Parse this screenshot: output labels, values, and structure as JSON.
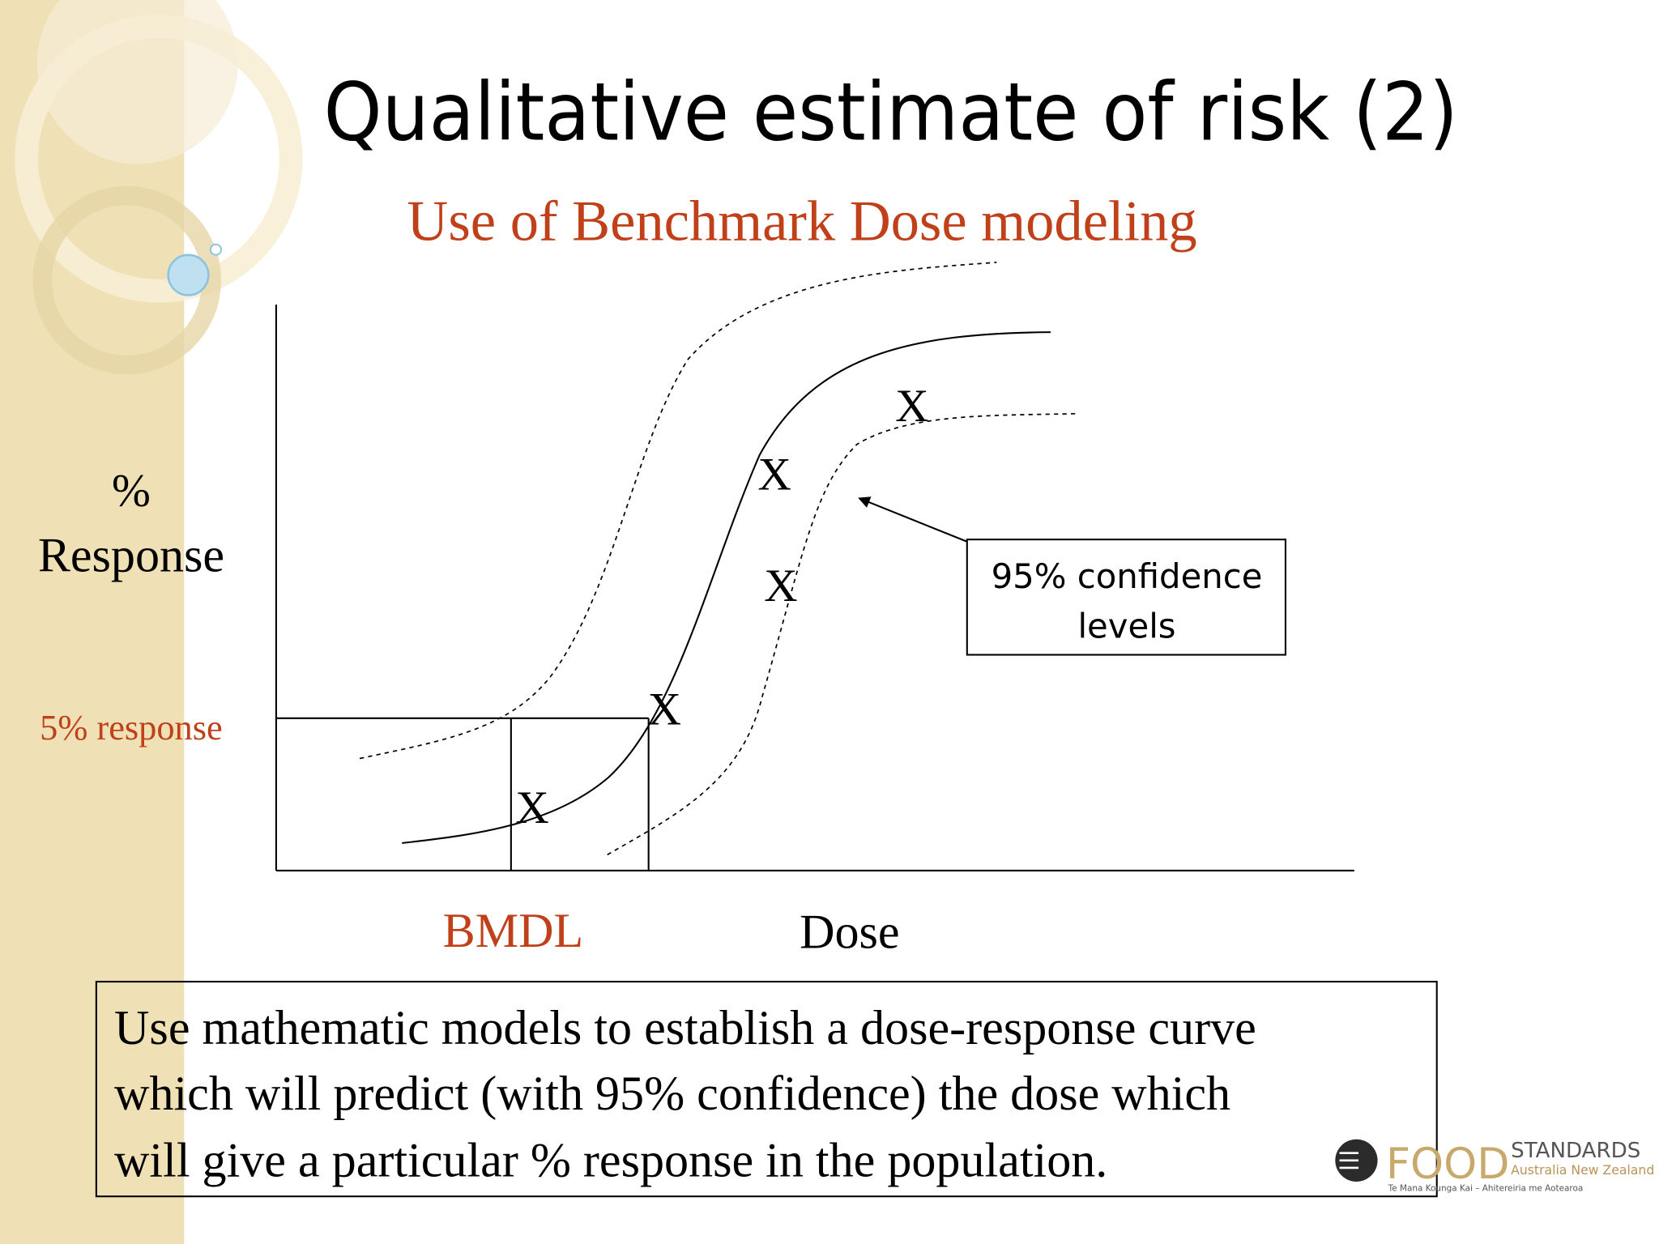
{
  "title": "Qualitative estimate of risk (2)",
  "subtitle": "Use of Benchmark Dose modeling",
  "diagram": {
    "y_axis_label": [
      "%",
      "Response"
    ],
    "threshold_label": "5% response",
    "x_labels": {
      "bmdl": "BMDL",
      "dose": "Dose"
    },
    "markers": [
      "X",
      "X",
      "X",
      "X",
      "X"
    ],
    "callout": [
      "95% confidence",
      "levels"
    ]
  },
  "body": [
    "Use mathematic models to establish a dose-response curve",
    "which will predict (with 95% confidence) the dose which",
    "will give a particular % response in the population."
  ],
  "logo": {
    "brand": "FOOD",
    "name": "STANDARDS",
    "region": "Australia New Zealand",
    "tagline": "Te Mana Kounga Kai – Ahitereiria me Aotearoa"
  }
}
